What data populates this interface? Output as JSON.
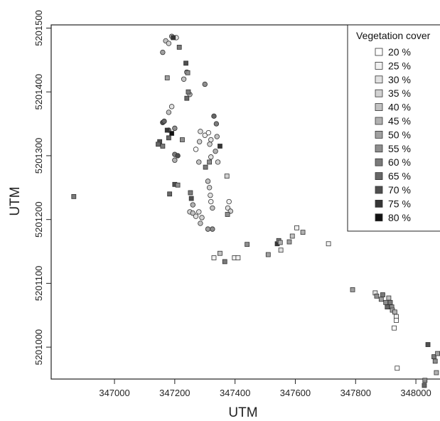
{
  "chart_data": {
    "type": "scatter",
    "xlabel": "UTM",
    "ylabel": "UTM",
    "xlim": [
      346790,
      348080
    ],
    "ylim": [
      5200950,
      5201505
    ],
    "x_ticks": [
      347000,
      347200,
      347400,
      347600,
      347800,
      348000
    ],
    "y_ticks": [
      5201000,
      5201100,
      5201200,
      5201300,
      5201400,
      5201500
    ],
    "legend": {
      "title": "Vegetation cover",
      "placement": "top-right",
      "entries": [
        {
          "label": "20 %",
          "cover": 20,
          "color": "#ffffff"
        },
        {
          "label": "25 %",
          "cover": 25,
          "color": "#f1f1f1"
        },
        {
          "label": "30 %",
          "cover": 30,
          "color": "#e2e2e2"
        },
        {
          "label": "35 %",
          "cover": 35,
          "color": "#d2d2d2"
        },
        {
          "label": "40 %",
          "cover": 40,
          "color": "#c2c2c2"
        },
        {
          "label": "45 %",
          "cover": 45,
          "color": "#b1b1b1"
        },
        {
          "label": "50 %",
          "cover": 50,
          "color": "#a0a0a0"
        },
        {
          "label": "55 %",
          "cover": 55,
          "color": "#8e8e8e"
        },
        {
          "label": "60 %",
          "cover": 60,
          "color": "#7a7a7a"
        },
        {
          "label": "65 %",
          "cover": 65,
          "color": "#666666"
        },
        {
          "label": "70 %",
          "cover": 70,
          "color": "#4f4f4f"
        },
        {
          "label": "75 %",
          "cover": 75,
          "color": "#363636"
        },
        {
          "label": "80 %",
          "cover": 80,
          "color": "#111111"
        }
      ]
    },
    "series": [
      {
        "marker": "circle",
        "points": [
          [
            347170,
            5201480,
            40
          ],
          [
            347190,
            5201487,
            45
          ],
          [
            347205,
            5201485,
            30
          ],
          [
            347160,
            5201462,
            50
          ],
          [
            347180,
            5201476,
            35
          ],
          [
            347240,
            5201431,
            35
          ],
          [
            347230,
            5201420,
            40
          ],
          [
            347250,
            5201396,
            45
          ],
          [
            347300,
            5201412,
            55
          ],
          [
            347180,
            5201368,
            40
          ],
          [
            347190,
            5201377,
            30
          ],
          [
            347160,
            5201352,
            70
          ],
          [
            347180,
            5201340,
            60
          ],
          [
            347200,
            5201343,
            55
          ],
          [
            347330,
            5201362,
            65
          ],
          [
            347338,
            5201350,
            60
          ],
          [
            347285,
            5201338,
            30
          ],
          [
            347300,
            5201332,
            25
          ],
          [
            347312,
            5201336,
            20
          ],
          [
            347282,
            5201322,
            35
          ],
          [
            347320,
            5201325,
            30
          ],
          [
            347340,
            5201330,
            40
          ],
          [
            347316,
            5201318,
            35
          ],
          [
            347335,
            5201307,
            45
          ],
          [
            347320,
            5201298,
            30
          ],
          [
            347343,
            5201290,
            35
          ],
          [
            347280,
            5201290,
            40
          ],
          [
            347200,
            5201302,
            60
          ],
          [
            347200,
            5201293,
            45
          ],
          [
            347210,
            5201300,
            70
          ],
          [
            347270,
            5201310,
            20
          ],
          [
            347310,
            5201260,
            40
          ],
          [
            347315,
            5201250,
            35
          ],
          [
            347318,
            5201238,
            30
          ],
          [
            347320,
            5201228,
            25
          ],
          [
            347325,
            5201218,
            40
          ],
          [
            347260,
            5201223,
            45
          ],
          [
            347250,
            5201212,
            35
          ],
          [
            347260,
            5201210,
            40
          ],
          [
            347280,
            5201212,
            30
          ],
          [
            347290,
            5201203,
            35
          ],
          [
            347285,
            5201194,
            40
          ],
          [
            347270,
            5201205,
            30
          ],
          [
            347380,
            5201228,
            25
          ],
          [
            347376,
            5201218,
            30
          ],
          [
            347385,
            5201213,
            35
          ],
          [
            347325,
            5201185,
            55
          ],
          [
            347310,
            5201185,
            50
          ],
          [
            347165,
            5201354,
            65
          ]
        ]
      },
      {
        "marker": "square",
        "points": [
          [
            346865,
            5201236,
            60
          ],
          [
            347195,
            5201485,
            75
          ],
          [
            347215,
            5201470,
            60
          ],
          [
            347175,
            5201422,
            50
          ],
          [
            347237,
            5201445,
            70
          ],
          [
            347243,
            5201430,
            55
          ],
          [
            347245,
            5201400,
            60
          ],
          [
            347240,
            5201390,
            65
          ],
          [
            347150,
            5201322,
            70
          ],
          [
            347145,
            5201318,
            65
          ],
          [
            347160,
            5201315,
            60
          ],
          [
            347175,
            5201340,
            75
          ],
          [
            347190,
            5201335,
            80
          ],
          [
            347225,
            5201325,
            55
          ],
          [
            347180,
            5201328,
            65
          ],
          [
            347200,
            5201255,
            70
          ],
          [
            347210,
            5201254,
            55
          ],
          [
            347183,
            5201240,
            65
          ],
          [
            347252,
            5201242,
            60
          ],
          [
            347255,
            5201233,
            70
          ],
          [
            347302,
            5201282,
            60
          ],
          [
            347315,
            5201290,
            55
          ],
          [
            347350,
            5201315,
            75
          ],
          [
            347373,
            5201268,
            35
          ],
          [
            347375,
            5201208,
            55
          ],
          [
            347366,
            5201134,
            60
          ],
          [
            347330,
            5201140,
            25
          ],
          [
            347350,
            5201147,
            40
          ],
          [
            347398,
            5201140,
            25
          ],
          [
            347410,
            5201140,
            25
          ],
          [
            347440,
            5201161,
            55
          ],
          [
            347510,
            5201145,
            50
          ],
          [
            347540,
            5201162,
            75
          ],
          [
            347545,
            5201167,
            60
          ],
          [
            347552,
            5201152,
            30
          ],
          [
            347550,
            5201164,
            45
          ],
          [
            347580,
            5201165,
            50
          ],
          [
            347590,
            5201174,
            40
          ],
          [
            347605,
            5201187,
            25
          ],
          [
            347625,
            5201180,
            45
          ],
          [
            347710,
            5201162,
            25
          ],
          [
            347790,
            5201090,
            50
          ],
          [
            347865,
            5201085,
            30
          ],
          [
            347870,
            5201080,
            55
          ],
          [
            347885,
            5201075,
            50
          ],
          [
            347890,
            5201082,
            60
          ],
          [
            347900,
            5201070,
            55
          ],
          [
            347905,
            5201063,
            65
          ],
          [
            347910,
            5201077,
            40
          ],
          [
            347915,
            5201070,
            60
          ],
          [
            347920,
            5201063,
            55
          ],
          [
            347922,
            5201058,
            50
          ],
          [
            347930,
            5201055,
            45
          ],
          [
            347935,
            5201048,
            25
          ],
          [
            347935,
            5201042,
            20
          ],
          [
            347928,
            5201030,
            20
          ],
          [
            347938,
            5200967,
            20
          ],
          [
            348030,
            5200948,
            55
          ],
          [
            348028,
            5200940,
            65
          ],
          [
            348040,
            5201004,
            70
          ],
          [
            348060,
            5200985,
            60
          ],
          [
            348064,
            5200978,
            55
          ],
          [
            348068,
            5200960,
            45
          ],
          [
            348072,
            5200990,
            50
          ]
        ]
      }
    ]
  }
}
